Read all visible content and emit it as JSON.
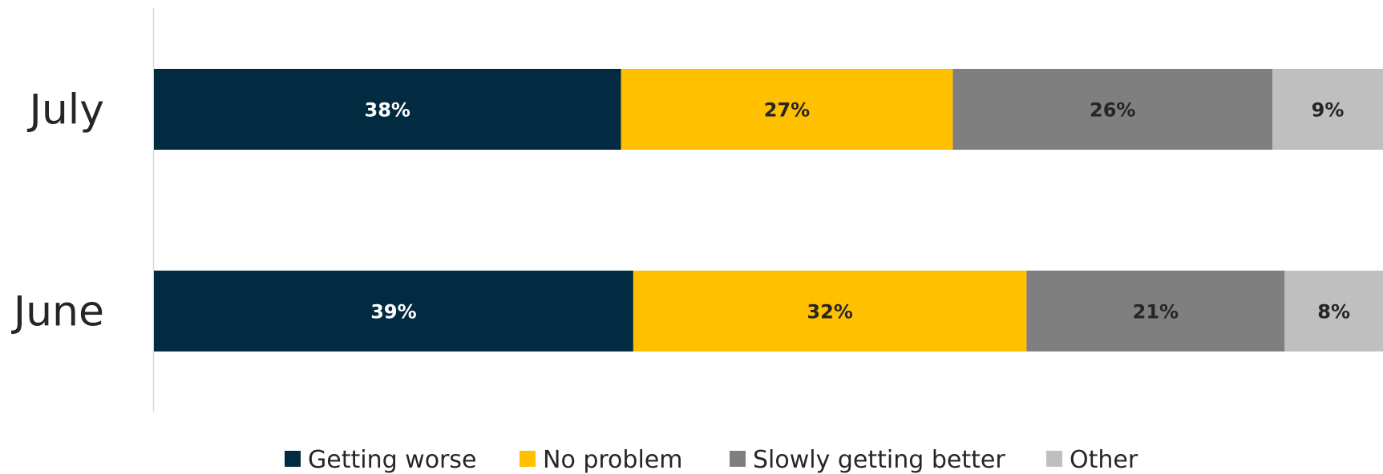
{
  "chart_data": {
    "type": "bar",
    "orientation": "horizontal",
    "stacked": true,
    "percent_stacked": true,
    "categories": [
      "July",
      "June"
    ],
    "series": [
      {
        "name": "Getting worse",
        "values": [
          38,
          39
        ],
        "labels": [
          "38%",
          "39%"
        ],
        "color": "#022A40",
        "label_color": "#FFFFFF"
      },
      {
        "name": "No problem",
        "values": [
          27,
          32
        ],
        "labels": [
          "27%",
          "32%"
        ],
        "color": "#FFC000",
        "label_color": "#262626"
      },
      {
        "name": "Slowly getting better",
        "values": [
          26,
          21
        ],
        "labels": [
          "26%",
          "21%"
        ],
        "color": "#7F7F7F",
        "label_color": "#262626"
      },
      {
        "name": "Other",
        "values": [
          9,
          8
        ],
        "labels": [
          "9%",
          "8%"
        ],
        "color": "#BFBFBF",
        "label_color": "#262626"
      }
    ],
    "xlim": [
      0,
      100
    ],
    "grid": false,
    "legend_position": "bottom"
  }
}
